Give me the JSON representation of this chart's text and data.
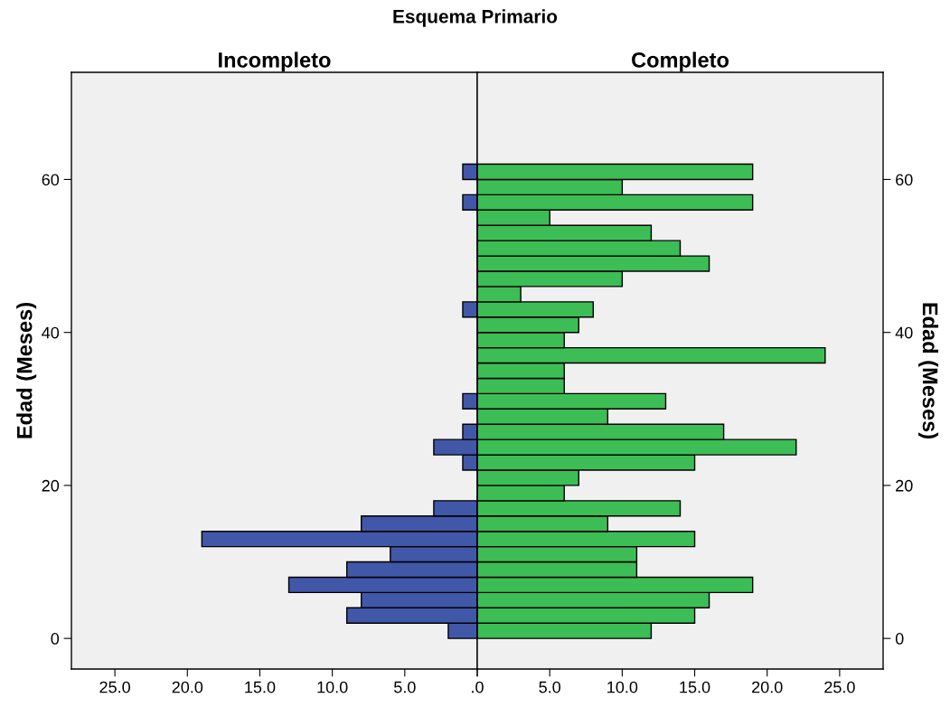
{
  "chart_data": [
    {
      "type": "histogram",
      "orientation": "horizontal",
      "title": "Incompleto",
      "ylabel": "Edad (Meses)",
      "annotations": [
        "Esquema Primario"
      ],
      "color": "#4157a8",
      "bins": [
        0,
        2,
        4,
        6,
        8,
        10,
        12,
        14,
        16,
        18,
        20,
        22,
        24,
        26,
        28,
        30,
        32,
        34,
        36,
        38,
        40,
        42,
        44,
        46,
        48,
        50,
        52,
        54,
        56,
        58,
        60,
        62
      ],
      "values": [
        2,
        9,
        8,
        13,
        9,
        6,
        19,
        8,
        3,
        null,
        null,
        1,
        3,
        1,
        null,
        1,
        null,
        null,
        null,
        null,
        null,
        1,
        null,
        null,
        null,
        null,
        null,
        null,
        1,
        null,
        1
      ],
      "xlim": [
        28,
        0
      ],
      "xticks": [
        {
          "value": 25,
          "label": "25.0"
        },
        {
          "value": 20,
          "label": "20.0"
        },
        {
          "value": 15,
          "label": "15.0"
        },
        {
          "value": 10,
          "label": "10.0"
        },
        {
          "value": 5,
          "label": "5.0"
        },
        {
          "value": 0,
          "label": null
        }
      ],
      "ylim": [
        -4,
        74
      ],
      "yticks": [
        0,
        20,
        40,
        60
      ],
      "grid": false
    },
    {
      "type": "histogram",
      "orientation": "horizontal",
      "title": "Completo",
      "ylabel": "Edad (Meses)",
      "color": "#3dbd55",
      "bins": [
        0,
        2,
        4,
        6,
        8,
        10,
        12,
        14,
        16,
        18,
        20,
        22,
        24,
        26,
        28,
        30,
        32,
        34,
        36,
        38,
        40,
        42,
        44,
        46,
        48,
        50,
        52,
        54,
        56,
        58,
        60,
        62
      ],
      "values": [
        12,
        15,
        16,
        19,
        11,
        11,
        15,
        9,
        14,
        6,
        7,
        15,
        22,
        17,
        9,
        13,
        6,
        6,
        24,
        6,
        7,
        8,
        3,
        10,
        16,
        14,
        12,
        5,
        19,
        10,
        19
      ],
      "xlim": [
        0,
        28
      ],
      "xticks": [
        {
          "value": 0,
          "label": ".0"
        },
        {
          "value": 5,
          "label": "5.0"
        },
        {
          "value": 10,
          "label": "10.0"
        },
        {
          "value": 15,
          "label": "15.0"
        },
        {
          "value": 20,
          "label": "20.0"
        },
        {
          "value": 25,
          "label": "25.0"
        }
      ],
      "ylim": [
        -4,
        74
      ],
      "yticks": [
        0,
        20,
        40,
        60
      ],
      "grid": false
    }
  ]
}
